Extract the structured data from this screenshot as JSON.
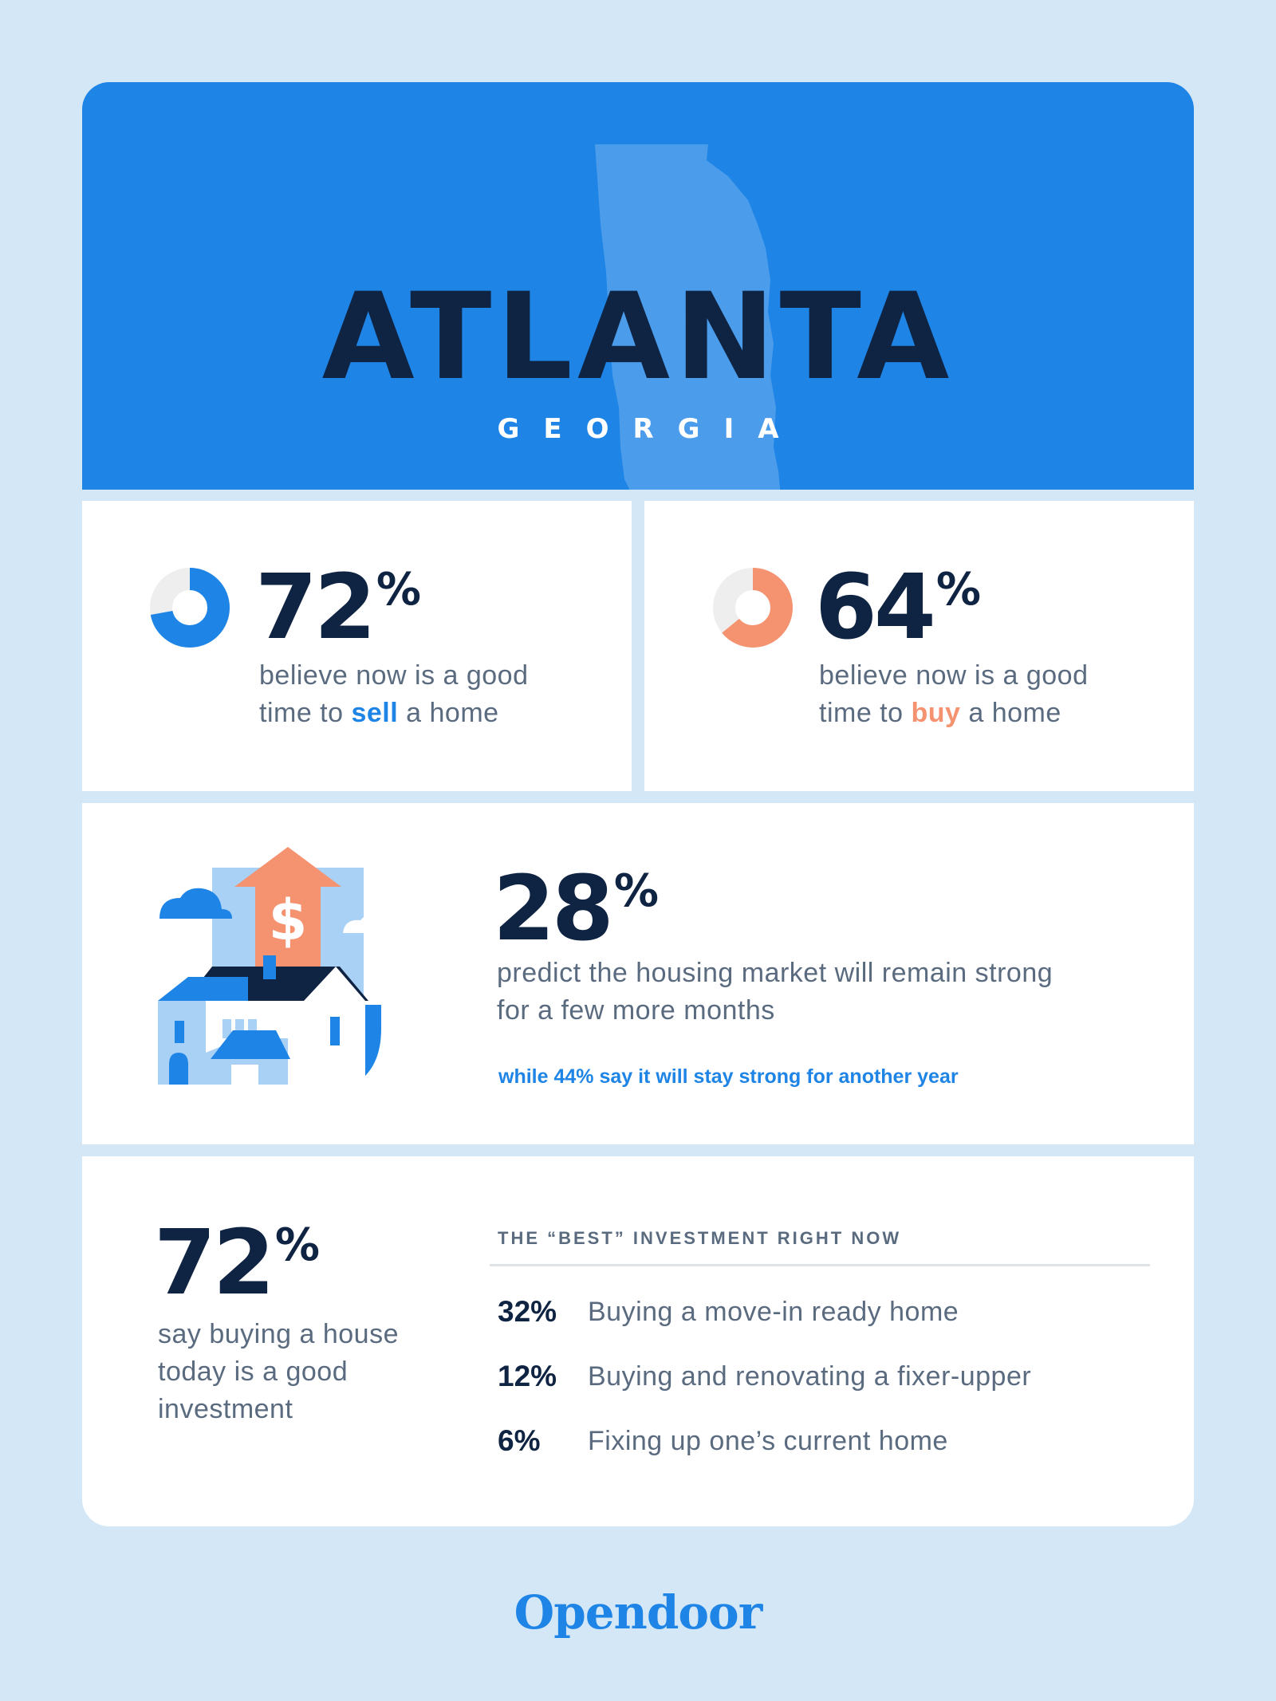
{
  "header": {
    "city": "ATLANTA",
    "state": "GEORGIA"
  },
  "stat_sell": {
    "value": "72",
    "unit": "%",
    "fraction": 0.72,
    "line1": "believe now is a good",
    "line2_pre": "time to ",
    "line2_hl": "sell",
    "line2_post": " a home",
    "color": "#1e84e6"
  },
  "stat_buy": {
    "value": "64",
    "unit": "%",
    "fraction": 0.64,
    "line1": "believe now is a good",
    "line2_pre": "time to ",
    "line2_hl": "buy",
    "line2_post": " a home",
    "color": "#f5926f"
  },
  "stat_market": {
    "value": "28",
    "unit": "%",
    "line1": "predict the housing market will remain strong",
    "line2": "for a few more months",
    "note": "while 44% say it will stay strong for another year"
  },
  "stat_invest": {
    "value": "72",
    "unit": "%",
    "line1": "say buying a house",
    "line2": "today is a good",
    "line3": "investment"
  },
  "best_investment": {
    "title": "THE “BEST” INVESTMENT RIGHT NOW",
    "rows": [
      {
        "pct": "32%",
        "label": "Buying a move-in ready home"
      },
      {
        "pct": "12%",
        "label": "Buying and renovating a fixer-upper"
      },
      {
        "pct": "6%",
        "label": "Fixing up one’s current home"
      }
    ]
  },
  "illustration": {
    "sign": "$"
  },
  "brand": {
    "name": "Opendoor"
  },
  "colors": {
    "background": "#d3e7f7",
    "blue": "#1e84e6",
    "navy": "#0f2342",
    "coral": "#f5926f",
    "gray_text": "#5a6b80"
  }
}
